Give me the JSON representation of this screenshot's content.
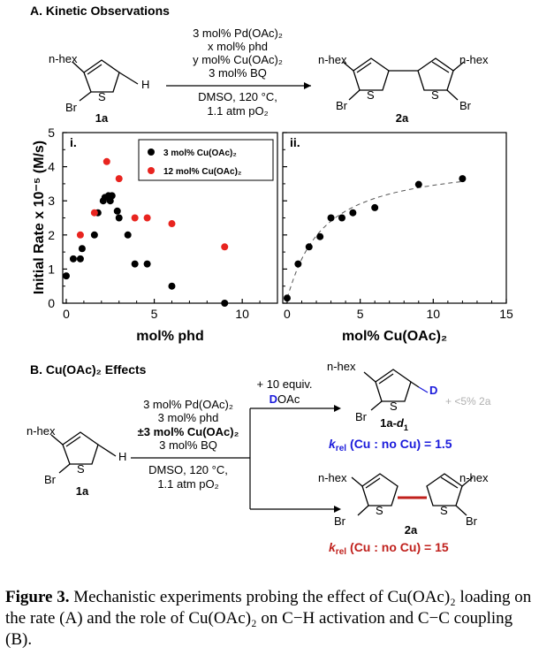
{
  "section_a": {
    "title": "A. Kinetic Observations",
    "reagents": [
      "3 mol% Pd(OAc)₂",
      "x mol% phd",
      "y mol% Cu(OAc)₂",
      "3 mol% BQ"
    ],
    "conditions": [
      "DMSO, 120 °C,",
      "1.1 atm pO₂"
    ],
    "sm_label": "1a",
    "product_label": "2a",
    "substituents": {
      "hex": "n-hex",
      "br": "Br",
      "s": "S",
      "h": "H"
    }
  },
  "section_b": {
    "title": "B. Cu(OAc)₂ Effects",
    "reagents": [
      "3 mol% Pd(OAc)₂",
      "3 mol% phd",
      "±3 mol% Cu(OAc)₂",
      "3 mol% BQ"
    ],
    "conditions": [
      "DMSO, 120 °C,",
      "1.1 atm pO₂"
    ],
    "additive": [
      "+ 10 equiv.",
      "DOAc"
    ],
    "deut_product": "1a-d₁",
    "minor_note": "+ <5% 2a",
    "d_label": "D",
    "krel_deut": "(Cu : no Cu) = 1.5",
    "krel_coupling": "(Cu : no Cu) = 15",
    "krel_symbol": "k",
    "krel_sub": "rel",
    "sm_label": "1a",
    "product_label": "2a"
  },
  "chart_data": [
    {
      "type": "scatter",
      "panel_label": "i.",
      "xlabel": "mol% phd",
      "ylabel": "Initial Rate x 10⁻⁵ (M/s)",
      "xlim": [
        -0.2,
        12
      ],
      "ylim": [
        0,
        5
      ],
      "xticks": [
        0,
        5,
        10
      ],
      "yticks": [
        0,
        1,
        2,
        3,
        4,
        5
      ],
      "legend": "top-right",
      "series": [
        {
          "name": "3 mol% Cu(OAc)₂",
          "color": "#000000",
          "points": [
            [
              0,
              0.8
            ],
            [
              0.4,
              1.3
            ],
            [
              0.8,
              1.3
            ],
            [
              0.9,
              1.6
            ],
            [
              1.6,
              2.0
            ],
            [
              1.8,
              2.65
            ],
            [
              2.1,
              3.0
            ],
            [
              2.2,
              3.1
            ],
            [
              2.4,
              3.15
            ],
            [
              2.5,
              3.0
            ],
            [
              2.6,
              3.15
            ],
            [
              2.9,
              2.7
            ],
            [
              3.0,
              2.5
            ],
            [
              3.5,
              2.0
            ],
            [
              3.9,
              1.15
            ],
            [
              4.6,
              1.15
            ],
            [
              6.0,
              0.5
            ],
            [
              9.0,
              0.0
            ]
          ]
        },
        {
          "name": "12 mol% Cu(OAc)₂",
          "color": "#e8241f",
          "points": [
            [
              0.8,
              2.0
            ],
            [
              1.6,
              2.65
            ],
            [
              2.3,
              4.15
            ],
            [
              3.0,
              3.65
            ],
            [
              3.9,
              2.5
            ],
            [
              4.6,
              2.5
            ],
            [
              6.0,
              2.33
            ],
            [
              9.0,
              1.65
            ]
          ]
        }
      ]
    },
    {
      "type": "scatter",
      "panel_label": "ii.",
      "xlabel": "mol% Cu(OAc)₂",
      "xlim": [
        -0.3,
        15
      ],
      "ylim": [
        0,
        5
      ],
      "xticks": [
        0,
        5,
        10,
        15
      ],
      "fit_line": "dashed",
      "series": [
        {
          "color": "#000000",
          "points": [
            [
              0,
              0.15
            ],
            [
              0.75,
              1.15
            ],
            [
              1.5,
              1.65
            ],
            [
              2.25,
              1.95
            ],
            [
              3.0,
              2.5
            ],
            [
              3.75,
              2.5
            ],
            [
              4.5,
              2.65
            ],
            [
              6.0,
              2.8
            ],
            [
              9.0,
              3.48
            ],
            [
              12.0,
              3.65
            ]
          ]
        }
      ]
    }
  ],
  "caption": {
    "label": "Figure 3.",
    "text": "Mechanistic experiments probing the effect of Cu(OAc)₂ loading on the rate (A) and the role of Cu(OAc)₂ on C−H activation and C−C coupling (B)."
  }
}
